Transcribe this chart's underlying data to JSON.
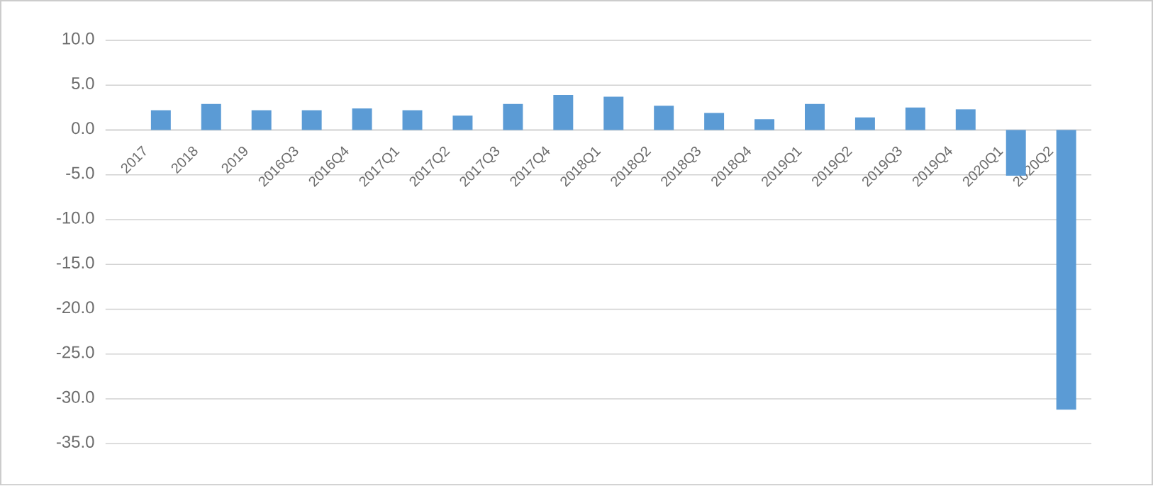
{
  "chart_data": {
    "type": "bar",
    "categories": [
      "2017",
      "2018",
      "2019",
      "2016Q3",
      "2016Q4",
      "2017Q1",
      "2017Q2",
      "2017Q3",
      "2017Q4",
      "2018Q1",
      "2018Q2",
      "2018Q3",
      "2018Q4",
      "2019Q1",
      "2019Q2",
      "2019Q3",
      "2019Q4",
      "2020Q1",
      "2020Q2"
    ],
    "values": [
      2.2,
      2.9,
      2.2,
      2.2,
      2.4,
      2.2,
      1.6,
      2.9,
      3.9,
      3.7,
      2.7,
      1.9,
      1.2,
      2.9,
      1.4,
      2.5,
      2.3,
      -5.1,
      -31.2
    ],
    "color": "#5b9bd5",
    "ylim": [
      -35,
      10
    ],
    "yticks": [
      {
        "value": -35,
        "label": "-35.0"
      },
      {
        "value": -30,
        "label": "-30.0"
      },
      {
        "value": -25,
        "label": "-25.0"
      },
      {
        "value": -20,
        "label": "-20.0"
      },
      {
        "value": -15,
        "label": "-15.0"
      },
      {
        "value": -10,
        "label": "-10.0"
      },
      {
        "value": -5,
        "label": "-5.0"
      },
      {
        "value": 0,
        "label": "0.0"
      },
      {
        "value": 5,
        "label": "5.0"
      },
      {
        "value": 10,
        "label": "10.0"
      }
    ],
    "grid": "y"
  }
}
